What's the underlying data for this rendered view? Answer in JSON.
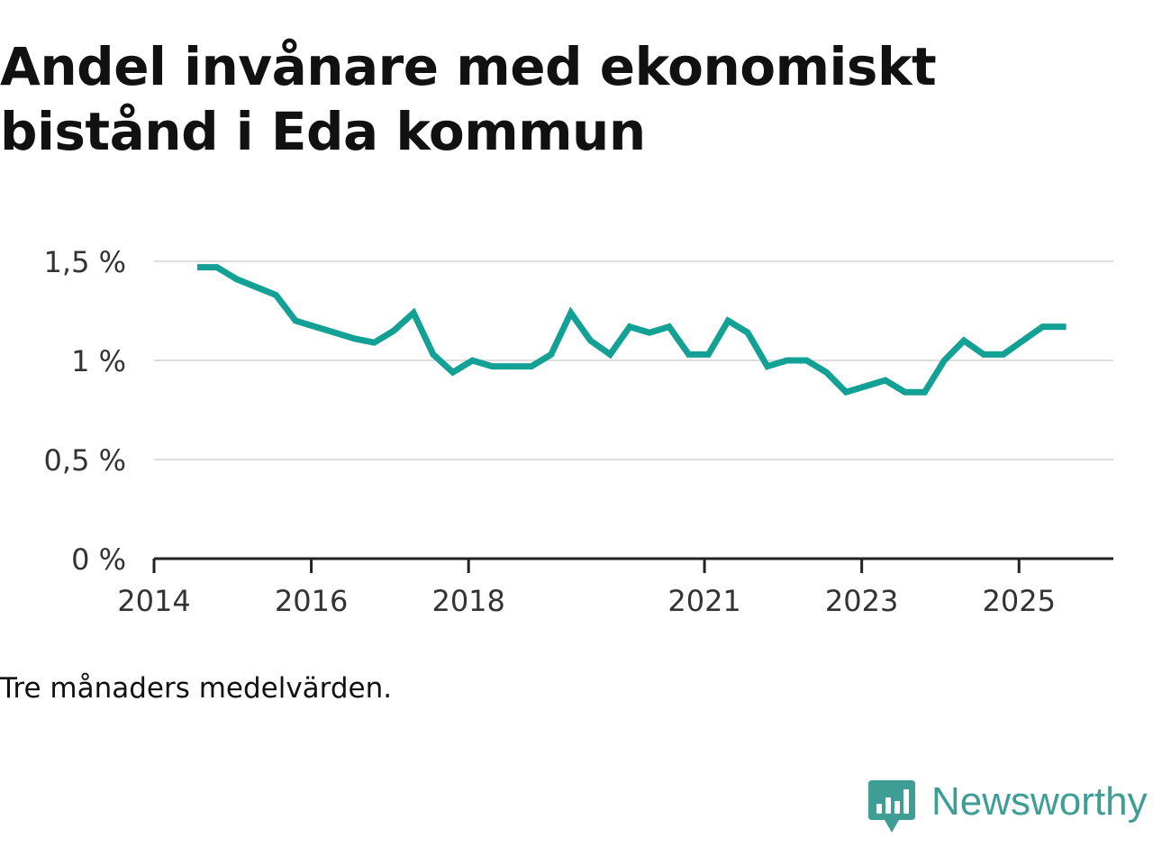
{
  "title_lines": [
    "Andel invånare med ekonomiskt",
    "bistånd i Eda kommun"
  ],
  "note": "Tre månaders medelvärden.",
  "brand": "Newsworthy",
  "colors": {
    "line": "#14a195",
    "grid": "#dddddd",
    "axis": "#222222",
    "brand": "#3e9e96"
  },
  "icons": {
    "logo": "newsworthy-logo-icon"
  },
  "chart_data": {
    "type": "line",
    "title": "Andel invånare med ekonomiskt bistånd i Eda kommun",
    "xlabel": "",
    "ylabel": "",
    "xlim": [
      2014,
      2026.2
    ],
    "ylim": [
      0,
      1.5
    ],
    "grid": true,
    "y_ticks": [
      {
        "value": 0,
        "label": "0 %"
      },
      {
        "value": 0.5,
        "label": "0,5 %"
      },
      {
        "value": 1,
        "label": "1 %"
      },
      {
        "value": 1.5,
        "label": "1,5 %"
      }
    ],
    "x_ticks": [
      {
        "value": 2014,
        "label": "2014"
      },
      {
        "value": 2016,
        "label": "2016"
      },
      {
        "value": 2018,
        "label": "2018"
      },
      {
        "value": 2021,
        "label": "2021"
      },
      {
        "value": 2023,
        "label": "2023"
      },
      {
        "value": 2025,
        "label": "2025"
      }
    ],
    "series": [
      {
        "name": "Andel invånare med ekonomiskt bistånd",
        "x": [
          2014.55,
          2014.8,
          2015.05,
          2015.3,
          2015.55,
          2015.8,
          2016.05,
          2016.3,
          2016.55,
          2016.8,
          2017.05,
          2017.3,
          2017.55,
          2017.8,
          2018.05,
          2018.3,
          2018.55,
          2018.8,
          2019.05,
          2019.3,
          2019.55,
          2019.8,
          2020.05,
          2020.3,
          2020.55,
          2020.8,
          2021.05,
          2021.3,
          2021.55,
          2021.8,
          2022.05,
          2022.3,
          2022.55,
          2022.8,
          2023.05,
          2023.3,
          2023.55,
          2023.8,
          2024.05,
          2024.3,
          2024.55,
          2024.8,
          2025.05,
          2025.3,
          2025.6
        ],
        "values": [
          1.47,
          1.47,
          1.41,
          1.37,
          1.33,
          1.2,
          1.17,
          1.14,
          1.11,
          1.09,
          1.15,
          1.24,
          1.03,
          0.94,
          1.0,
          0.97,
          0.97,
          0.97,
          1.03,
          1.24,
          1.1,
          1.03,
          1.17,
          1.14,
          1.17,
          1.03,
          1.03,
          1.2,
          1.14,
          0.97,
          1.0,
          1.0,
          0.94,
          0.84,
          0.87,
          0.9,
          0.84,
          0.84,
          1.0,
          1.1,
          1.03,
          1.03,
          1.1,
          1.17,
          1.17
        ]
      }
    ]
  }
}
